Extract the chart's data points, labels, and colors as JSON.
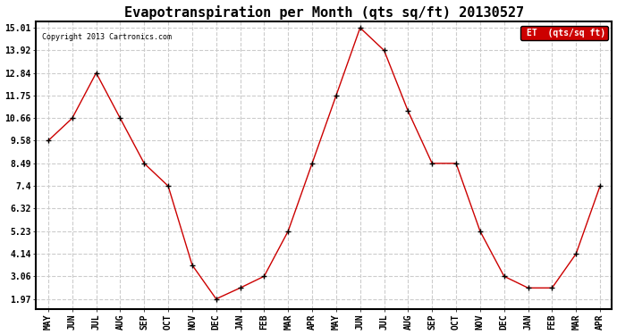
{
  "months": [
    "MAY",
    "JUN",
    "JUL",
    "AUG",
    "SEP",
    "OCT",
    "NOV",
    "DEC",
    "JAN",
    "FEB",
    "MAR",
    "APR",
    "MAY",
    "JUN",
    "JUL",
    "AUG",
    "SEP",
    "OCT",
    "NOV",
    "DEC",
    "JAN",
    "FEB",
    "MAR",
    "APR"
  ],
  "values": [
    9.58,
    10.66,
    12.84,
    10.66,
    8.49,
    7.4,
    3.6,
    1.97,
    2.5,
    3.06,
    5.23,
    8.49,
    11.75,
    15.01,
    13.92,
    11.0,
    8.49,
    8.49,
    5.23,
    3.06,
    2.5,
    2.5,
    4.14,
    7.4
  ],
  "yticks": [
    1.97,
    3.06,
    4.14,
    5.23,
    6.32,
    7.4,
    8.49,
    9.58,
    10.66,
    11.75,
    12.84,
    13.92,
    15.01
  ],
  "title": "Evapotranspiration per Month (qts sq/ft) 20130527",
  "title_fontsize": 11,
  "copyright_text": "Copyright 2013 Cartronics.com",
  "legend_label": "ET  (qts/sq ft)",
  "line_color": "#cc0000",
  "marker": "+",
  "marker_color": "black",
  "background_color": "#ffffff",
  "plot_bg_color": "#ffffff",
  "grid_color": "#cccccc",
  "legend_bg": "#cc0000",
  "legend_text_color": "white",
  "tick_label_fontsize": 7,
  "border_color": "#000000"
}
